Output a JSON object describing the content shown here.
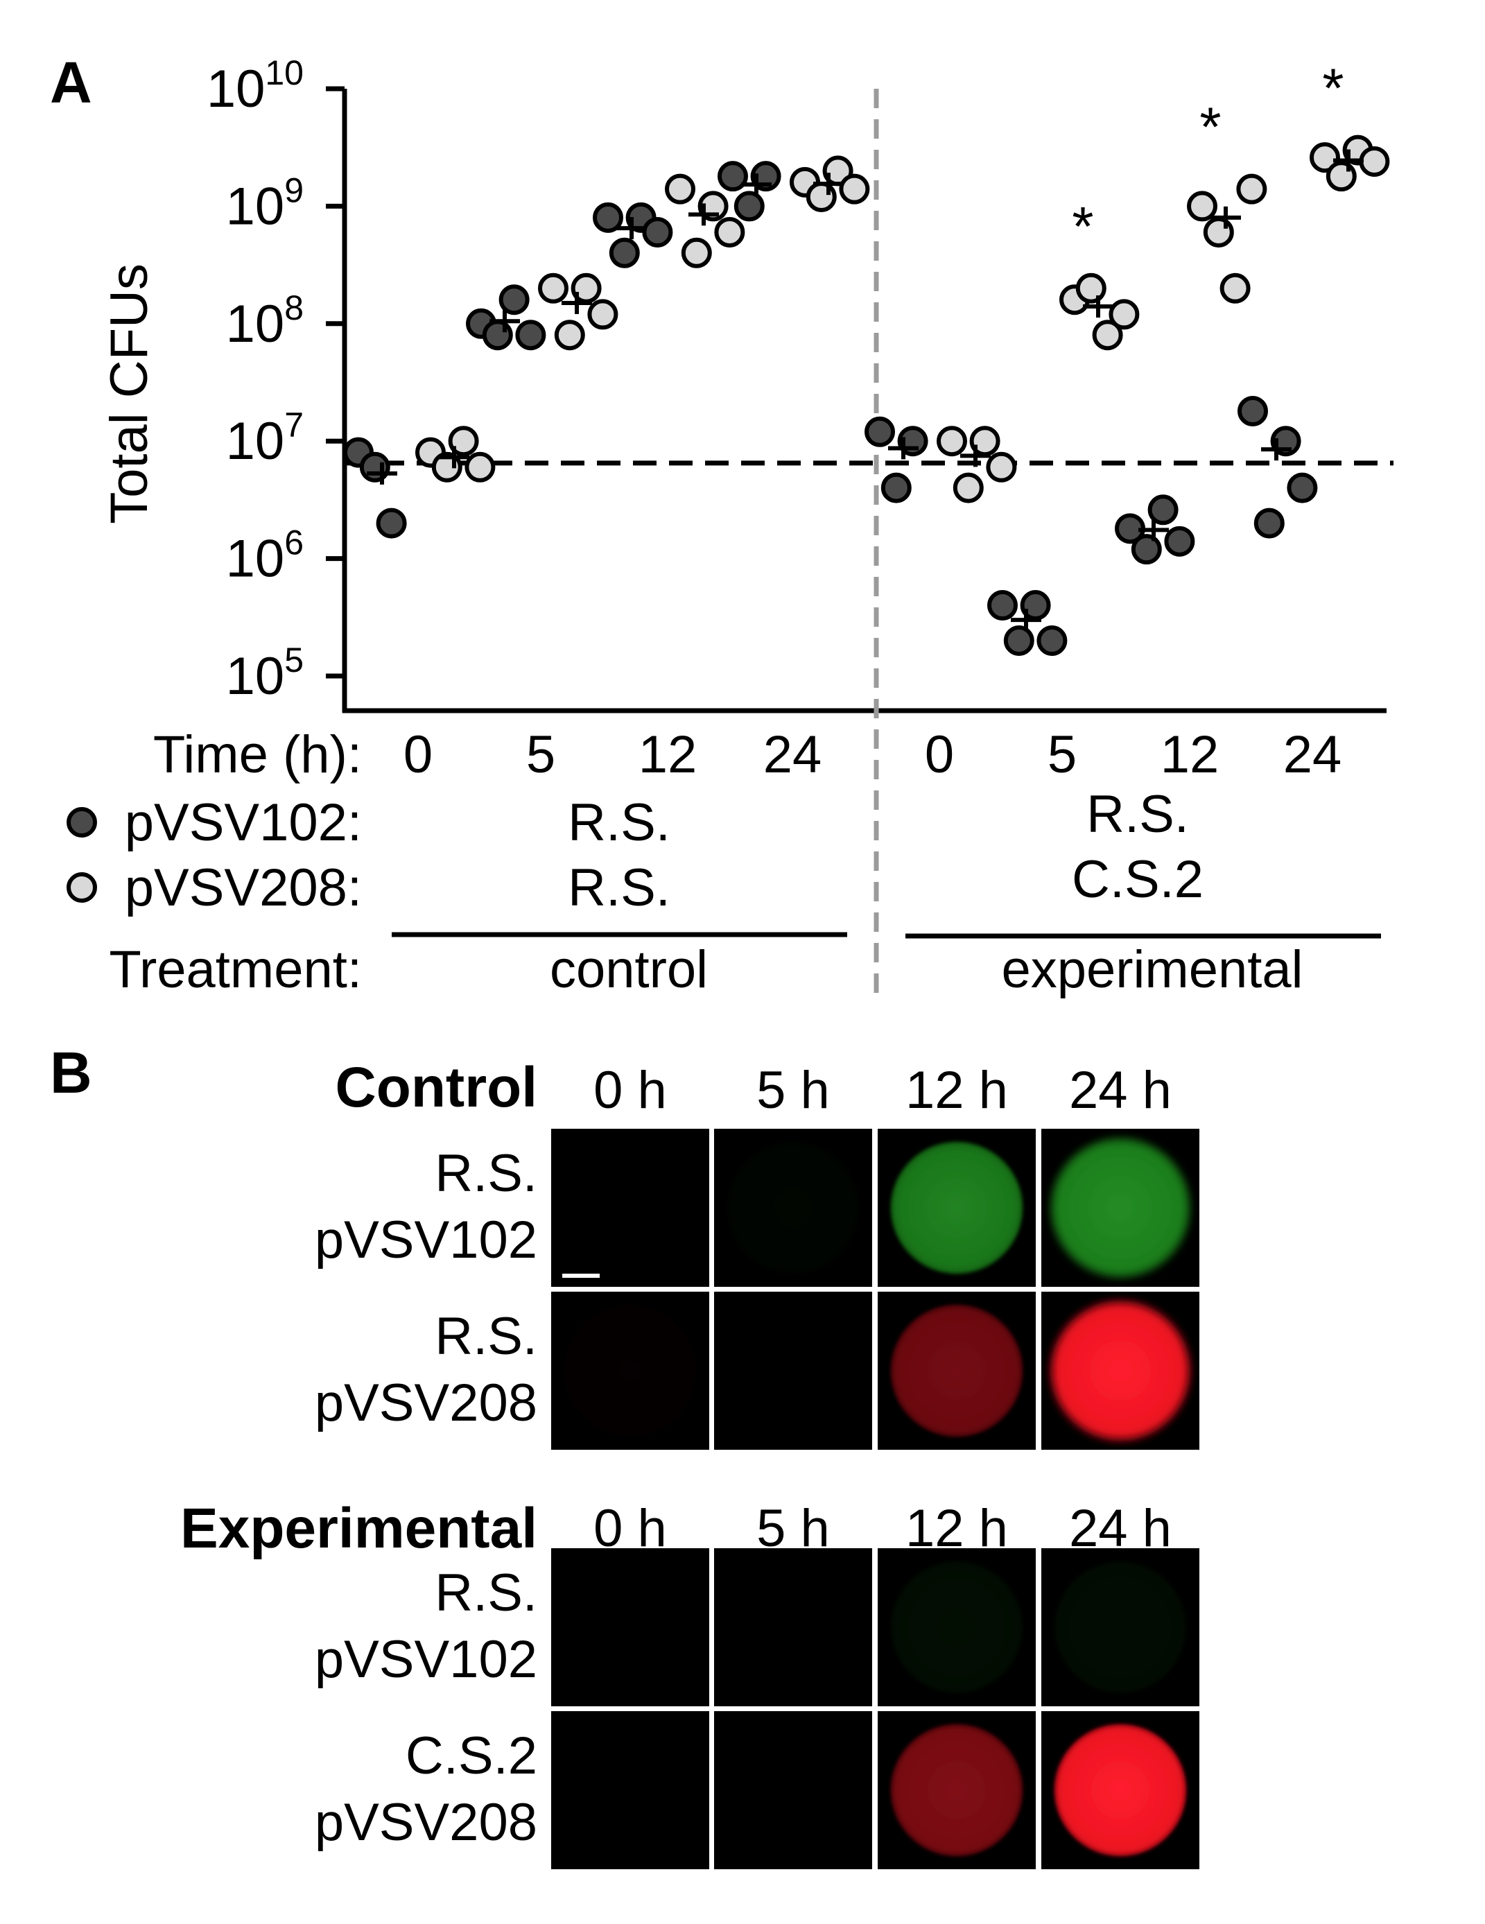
{
  "chart_data": {
    "panel_a": {
      "type": "scatter",
      "panel_label": "A",
      "ylabel": "Total CFUs",
      "yscale": "log",
      "ylim": [
        100000,
        10000000000
      ],
      "y_ticks": [
        {
          "value": 100000,
          "base": "10",
          "exp": "5"
        },
        {
          "value": 1000000,
          "base": "10",
          "exp": "6"
        },
        {
          "value": 10000000,
          "base": "10",
          "exp": "7"
        },
        {
          "value": 100000000,
          "base": "10",
          "exp": "8"
        },
        {
          "value": 1000000000,
          "base": "10",
          "exp": "9"
        },
        {
          "value": 10000000000,
          "base": "10",
          "exp": "10"
        }
      ],
      "baseline": 6500000,
      "row_labels": {
        "time": "Time (h):",
        "strain1": "pVSV102:",
        "strain2": "pVSV208:",
        "treatment": "Treatment:"
      },
      "strain_colors": {
        "pVSV102": "#4a4a4a",
        "pVSV208": "#d9d9d9"
      },
      "groups": [
        {
          "treatment": "control",
          "strain1": "R.S.",
          "strain2": "R.S.",
          "times": [
            "0",
            "5",
            "12",
            "24"
          ]
        },
        {
          "treatment": "experimental",
          "strain1": "R.S.",
          "strain2": "C.S.2",
          "times": [
            "0",
            "5",
            "12",
            "24"
          ]
        }
      ],
      "series": [
        {
          "name": "pVSV102",
          "group": 0,
          "time": 0,
          "values": [
            8000000,
            6000000,
            2000000
          ],
          "mean": 5300000
        },
        {
          "name": "pVSV208",
          "group": 0,
          "time": 0,
          "values": [
            8000000,
            6000000,
            10000000,
            6000000
          ],
          "mean": 7300000
        },
        {
          "name": "pVSV102",
          "group": 0,
          "time": 1,
          "values": [
            100000000,
            80000000,
            160000000,
            80000000
          ],
          "mean": 105000000
        },
        {
          "name": "pVSV208",
          "group": 0,
          "time": 1,
          "values": [
            200000000,
            80000000,
            200000000,
            120000000
          ],
          "mean": 150000000
        },
        {
          "name": "pVSV102",
          "group": 0,
          "time": 2,
          "values": [
            800000000,
            400000000,
            800000000,
            600000000
          ],
          "mean": 650000000
        },
        {
          "name": "pVSV208",
          "group": 0,
          "time": 2,
          "values": [
            1400000000,
            400000000,
            1000000000,
            600000000
          ],
          "mean": 850000000
        },
        {
          "name": "pVSV102",
          "group": 0,
          "time": 3,
          "values": [
            1800000000,
            1000000000,
            1800000000
          ],
          "mean": 1530000000
        },
        {
          "name": "pVSV208",
          "group": 0,
          "time": 3,
          "values": [
            1600000000,
            1200000000,
            2000000000,
            1400000000
          ],
          "mean": 1550000000
        },
        {
          "name": "pVSV102",
          "group": 1,
          "time": 0,
          "values": [
            12000000,
            4000000,
            10000000
          ],
          "mean": 8700000
        },
        {
          "name": "pVSV208",
          "group": 1,
          "time": 0,
          "values": [
            10000000,
            4000000,
            10000000,
            6000000
          ],
          "mean": 7500000
        },
        {
          "name": "pVSV102",
          "group": 1,
          "time": 1,
          "values": [
            400000,
            200000,
            400000,
            200000
          ],
          "mean": 300000
        },
        {
          "name": "pVSV208",
          "group": 1,
          "time": 1,
          "values": [
            160000000,
            200000000,
            80000000,
            120000000
          ],
          "mean": 140000000
        },
        {
          "name": "pVSV102",
          "group": 1,
          "time": 2,
          "values": [
            1800000,
            1200000,
            2600000,
            1400000
          ],
          "mean": 1750000
        },
        {
          "name": "pVSV208",
          "group": 1,
          "time": 2,
          "values": [
            1000000000,
            600000000,
            200000000,
            1400000000
          ],
          "mean": 800000000
        },
        {
          "name": "pVSV102",
          "group": 1,
          "time": 3,
          "values": [
            18000000,
            2000000,
            10000000,
            4000000
          ],
          "mean": 8500000
        },
        {
          "name": "pVSV208",
          "group": 1,
          "time": 3,
          "values": [
            2600000000,
            1800000000,
            3000000000,
            2400000000
          ],
          "mean": 2450000000
        }
      ],
      "significance": [
        {
          "group": 1,
          "time": 1,
          "label": "*"
        },
        {
          "group": 1,
          "time": 2,
          "label": "*"
        },
        {
          "group": 1,
          "time": 3,
          "label": "*"
        }
      ]
    },
    "panel_b": {
      "type": "image_grid",
      "panel_label": "B",
      "times": [
        "0 h",
        "5 h",
        "12 h",
        "24 h"
      ],
      "blocks": [
        {
          "title": "Control",
          "rows": [
            {
              "label1": "R.S.",
              "label2": "pVSV102",
              "channel": "green",
              "intensity": [
                0.0,
                0.03,
                0.75,
                0.8
              ],
              "fuzzy": [
                false,
                false,
                false,
                true
              ]
            },
            {
              "label1": "R.S.",
              "label2": "pVSV208",
              "channel": "red",
              "intensity": [
                0.02,
                0.0,
                0.45,
                1.0
              ],
              "fuzzy": [
                false,
                false,
                false,
                true
              ]
            }
          ]
        },
        {
          "title": "Experimental",
          "rows": [
            {
              "label1": "R.S.",
              "label2": "pVSV102",
              "channel": "green",
              "intensity": [
                0.0,
                0.0,
                0.08,
                0.07
              ],
              "fuzzy": [
                false,
                false,
                false,
                false
              ]
            },
            {
              "label1": "C.S.2",
              "label2": "pVSV208",
              "channel": "red",
              "intensity": [
                0.0,
                0.0,
                0.5,
                1.0
              ],
              "fuzzy": [
                false,
                false,
                false,
                false
              ]
            }
          ]
        }
      ]
    }
  }
}
